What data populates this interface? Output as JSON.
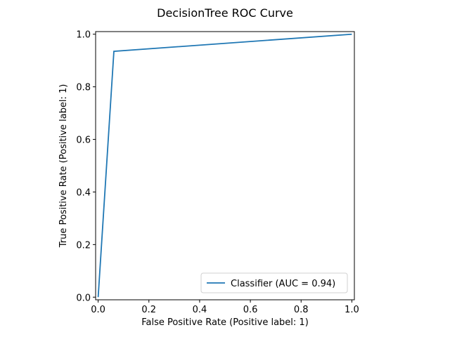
{
  "chart_data": {
    "type": "line",
    "title": "DecisionTree ROC Curve",
    "xlabel": "False Positive Rate (Positive label: 1)",
    "ylabel": "True Positive Rate (Positive label: 1)",
    "xlim": [
      -0.01,
      1.01
    ],
    "ylim": [
      -0.01,
      1.01
    ],
    "xticks": [
      0.0,
      0.2,
      0.4,
      0.6,
      0.8,
      1.0
    ],
    "yticks": [
      0.0,
      0.2,
      0.4,
      0.6,
      0.8,
      1.0
    ],
    "xtick_labels": [
      "0.0",
      "0.2",
      "0.4",
      "0.6",
      "0.8",
      "1.0"
    ],
    "ytick_labels": [
      "0.0",
      "0.2",
      "0.4",
      "0.6",
      "0.8",
      "1.0"
    ],
    "grid": false,
    "legend_position": "lower-right",
    "series": [
      {
        "name": "Classifier (AUC = 0.94)",
        "color": "#1f77b4",
        "x": [
          0.0,
          0.062,
          1.0
        ],
        "y": [
          0.0,
          0.935,
          1.0
        ]
      }
    ]
  }
}
